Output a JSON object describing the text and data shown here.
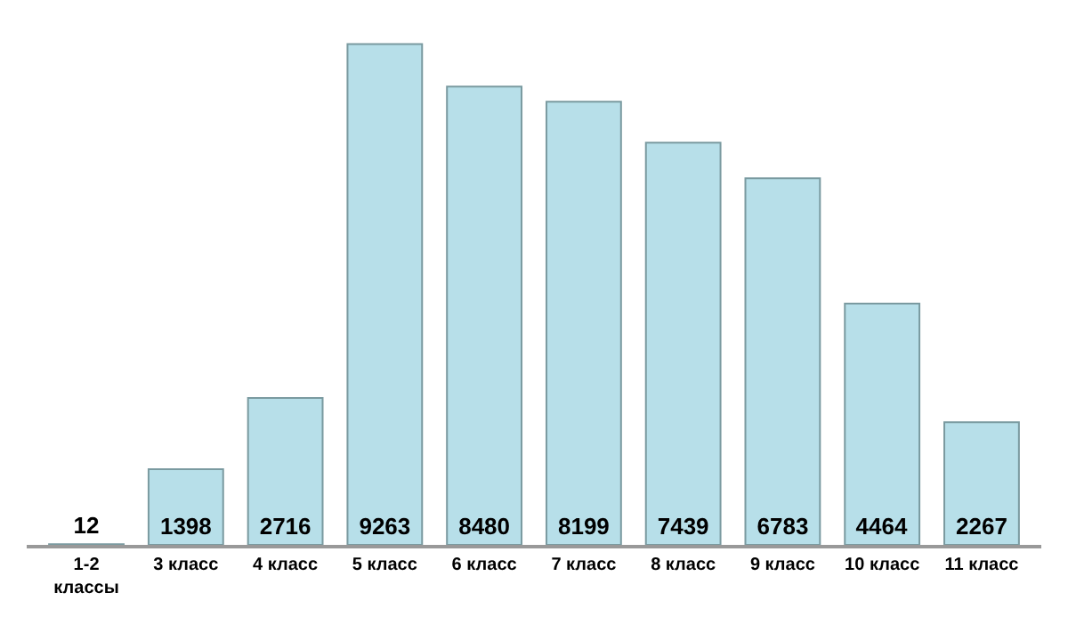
{
  "chart_data": {
    "type": "bar",
    "categories": [
      "1-2 классы",
      "3 класс",
      "4 класс",
      "5 класс",
      "6 класс",
      "7 класс",
      "8 класс",
      "9 класс",
      "10 класс",
      "11 класс"
    ],
    "values": [
      12,
      1398,
      2716,
      9263,
      8480,
      8199,
      7439,
      6783,
      4464,
      2267
    ],
    "color": "#b7dfe9",
    "data_labels": true
  }
}
